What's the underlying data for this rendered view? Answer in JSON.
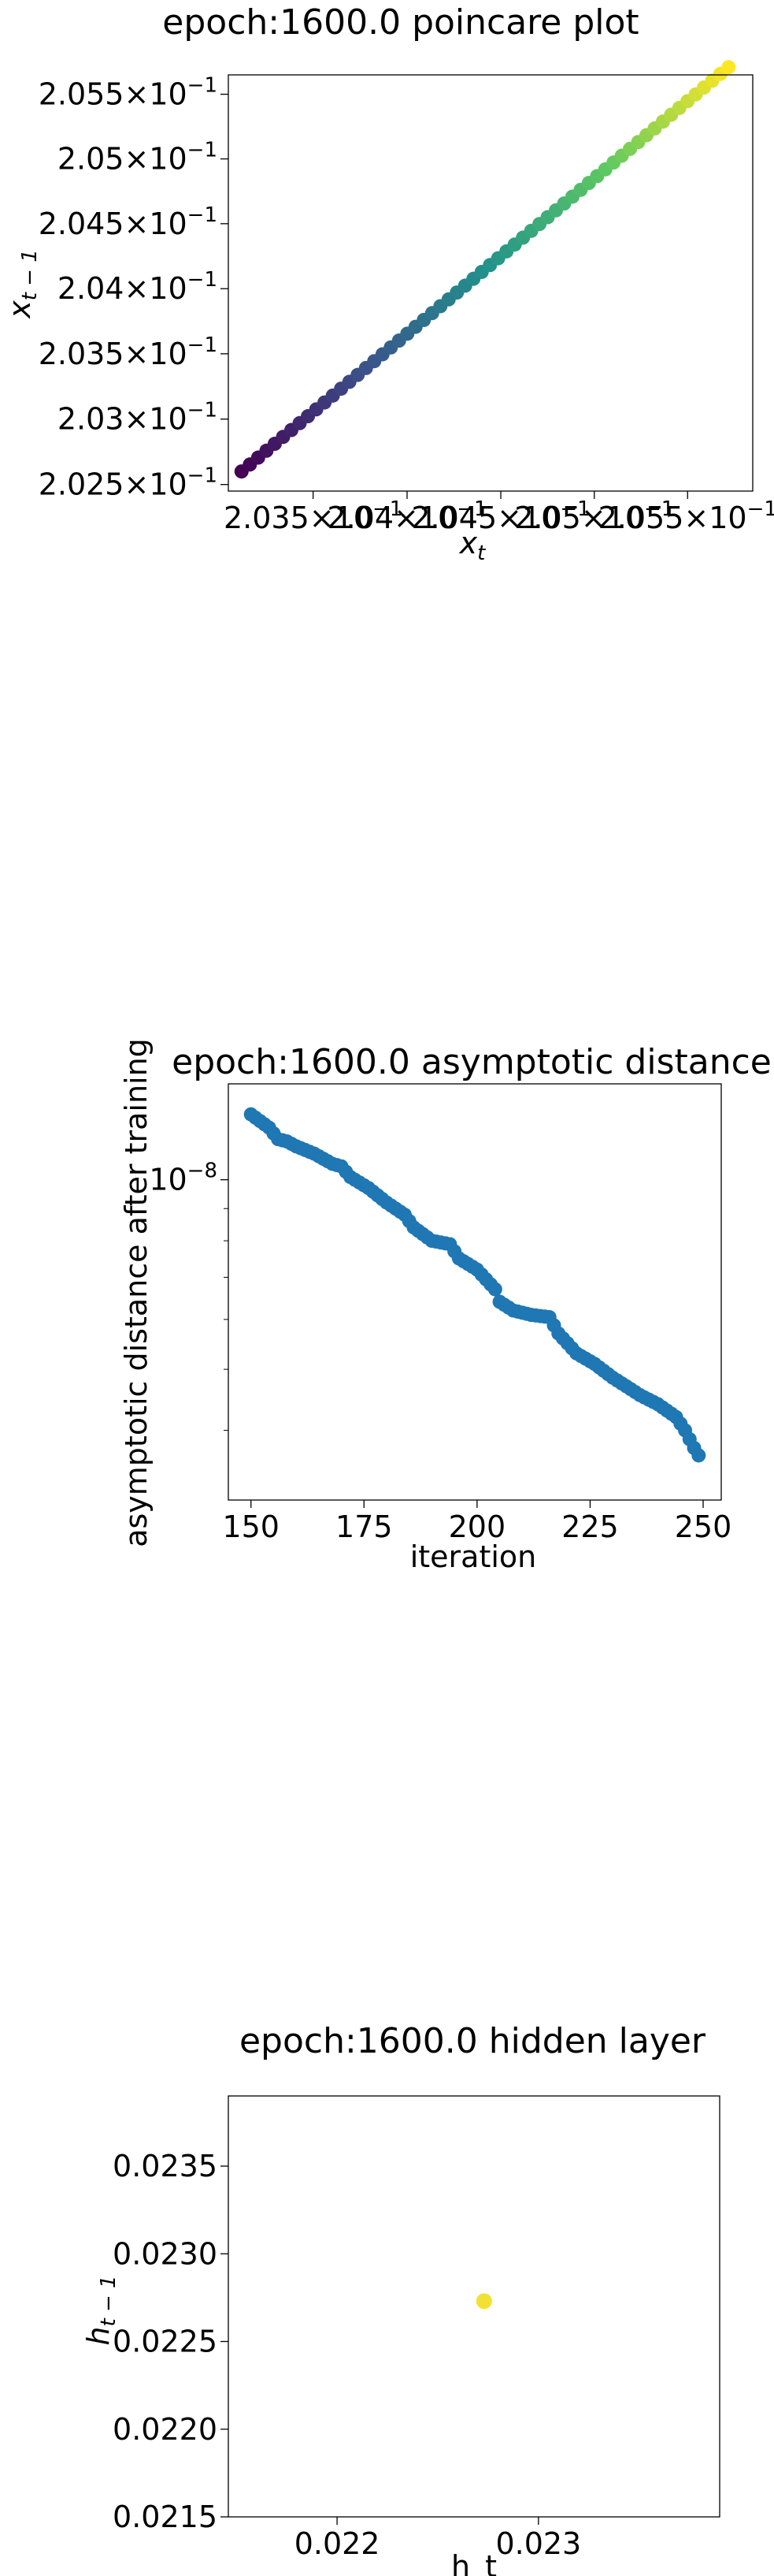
{
  "chart_data": [
    {
      "type": "scatter",
      "title": "epoch:1600.0 poincare plot",
      "xlabel": "x_t",
      "ylabel": "x_{t-1}",
      "xscale": "log",
      "yscale": "log",
      "colormap": "viridis",
      "xlim": [
        0.20305,
        0.20585
      ],
      "ylim": [
        0.20245,
        0.20565
      ],
      "x_tick_labels": [
        {
          "value": 0.2035,
          "base": "2.035",
          "exp": "−1"
        },
        {
          "value": 0.204,
          "base": "2.04",
          "exp": "−1"
        },
        {
          "value": 0.2045,
          "base": "2.045",
          "exp": "−1"
        },
        {
          "value": 0.205,
          "base": "2.05",
          "exp": "−1"
        },
        {
          "value": 0.2055,
          "base": "2.055",
          "exp": "−1"
        }
      ],
      "y_tick_labels": [
        {
          "value": 0.2025,
          "base": "2.025",
          "exp": "−1"
        },
        {
          "value": 0.203,
          "base": "2.03",
          "exp": "−1"
        },
        {
          "value": 0.2035,
          "base": "2.035",
          "exp": "−1"
        },
        {
          "value": 0.204,
          "base": "2.04",
          "exp": "−1"
        },
        {
          "value": 0.2045,
          "base": "2.045",
          "exp": "−1"
        },
        {
          "value": 0.205,
          "base": "2.05",
          "exp": "−1"
        },
        {
          "value": 0.2055,
          "base": "2.055",
          "exp": "−1"
        }
      ],
      "x_range_of_points": [
        0.20312,
        0.20572
      ],
      "y_range_of_points": [
        0.2026,
        0.20571
      ],
      "points_count": 60,
      "grid": false
    },
    {
      "type": "scatter",
      "title": "epoch:1600.0 asymptotic distance",
      "xlabel": "iteration",
      "ylabel": "asymptotic distance after training",
      "yscale": "log",
      "color": "#1f77b4",
      "xlim": [
        145,
        254
      ],
      "ylim": [
        3.1e-09,
        1.42e-08
      ],
      "x_ticks": [
        150,
        175,
        200,
        225,
        250
      ],
      "y_tick_labels": [
        {
          "value": 1e-08,
          "base": "10",
          "exp": "−8"
        }
      ],
      "x": [
        150,
        154,
        156,
        158,
        160,
        164,
        168,
        170,
        172,
        176,
        180,
        184,
        186,
        190,
        194,
        196,
        200,
        204,
        205,
        208,
        212,
        216,
        218,
        220,
        222,
        226,
        230,
        234,
        236,
        240,
        244,
        246,
        248,
        249
      ],
      "y": [
        1.27e-08,
        1.21e-08,
        1.16e-08,
        1.15e-08,
        1.13e-08,
        1.1e-08,
        1.06e-08,
        1.05e-08,
        1.01e-08,
        9.7e-09,
        9.2e-09,
        8.8e-09,
        8.4e-09,
        8e-09,
        7.9e-09,
        7.5e-09,
        7.2e-09,
        6.7e-09,
        6.4e-09,
        6.2e-09,
        6.1e-09,
        6.05e-09,
        5.7e-09,
        5.5e-09,
        5.3e-09,
        5.1e-09,
        4.85e-09,
        4.65e-09,
        4.55e-09,
        4.4e-09,
        4.2e-09,
        4e-09,
        3.75e-09,
        3.65e-09
      ],
      "grid": false
    },
    {
      "type": "scatter",
      "title": "epoch:1600.0 hidden layer",
      "xlabel": "h_t",
      "ylabel": "h_{t-1}",
      "color": "#f2e132",
      "xlim": [
        0.02146,
        0.0239
      ],
      "ylim": [
        0.0215,
        0.0239
      ],
      "x_ticks": [
        0.022,
        0.023
      ],
      "y_ticks": [
        0.0215,
        0.022,
        0.0225,
        0.023,
        0.0235
      ],
      "x": [
        0.02273
      ],
      "y": [
        0.02273
      ],
      "grid": false
    }
  ]
}
